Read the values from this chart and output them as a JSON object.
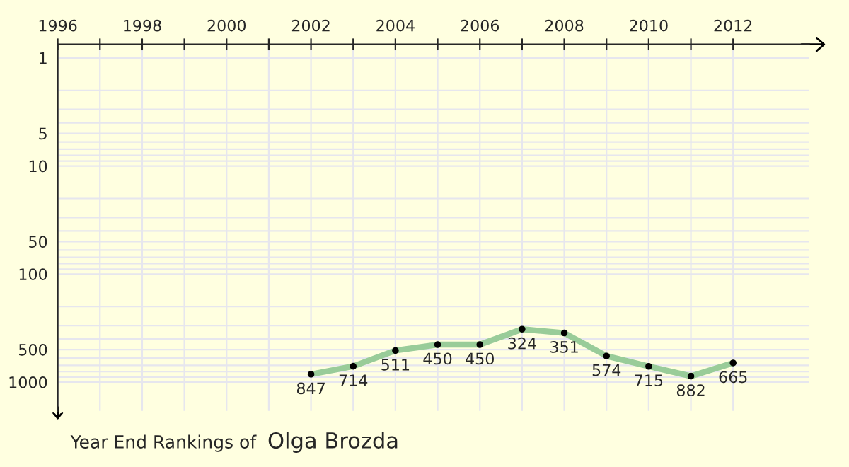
{
  "chart_data": {
    "type": "line",
    "title": "Year End Rankings of",
    "subtitle": "Olga Brozda",
    "x": [
      2002,
      2003,
      2004,
      2005,
      2006,
      2007,
      2008,
      2009,
      2010,
      2011,
      2012
    ],
    "series": [
      {
        "color": "#99cc99",
        "values": [
          847,
          714,
          511,
          450,
          450,
          324,
          351,
          574,
          715,
          882,
          665
        ]
      }
    ],
    "data_labels": true,
    "marker": "circle",
    "line_style": "solid",
    "log": "y",
    "grid": true,
    "xlim": [
      1996,
      2013.8
    ],
    "ylim": [
      1850,
      0.75
    ],
    "xticks": [
      1996,
      {
        "value": 1997,
        "label": null
      },
      1998,
      {
        "value": 1999,
        "label": null
      },
      2000,
      {
        "value": 2001,
        "label": null
      },
      2002,
      {
        "value": 2003,
        "label": null
      },
      2004,
      {
        "value": 2005,
        "label": null
      },
      2006,
      {
        "value": 2007,
        "label": null
      },
      2008,
      {
        "value": 2009,
        "label": null
      },
      2010,
      {
        "value": 2011,
        "label": null
      },
      2012
    ],
    "yticks": [
      1,
      5,
      10,
      50,
      100,
      500,
      1000
    ]
  }
}
